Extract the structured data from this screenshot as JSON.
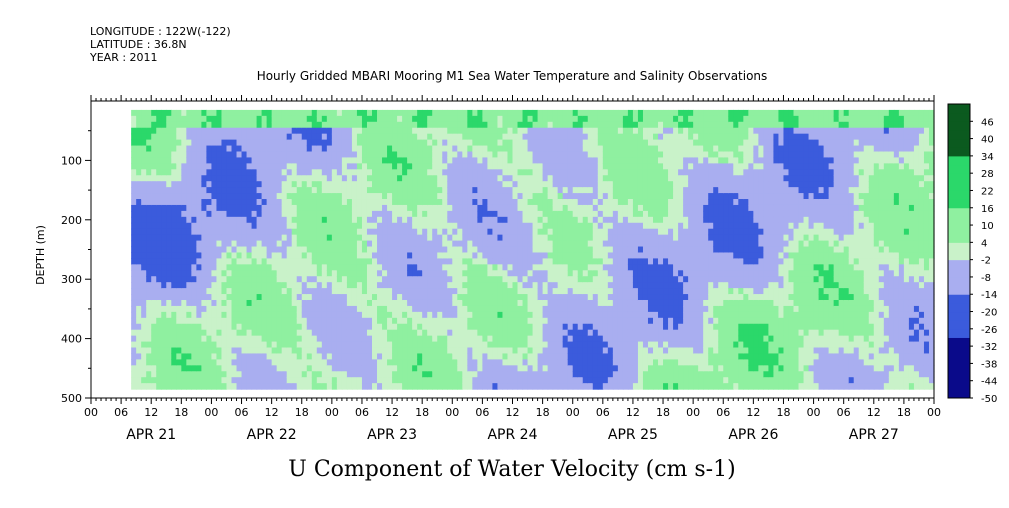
{
  "header": {
    "longitude": "LONGITUDE : 122W(-122)",
    "latitude": "LATITUDE : 36.8N",
    "year": "YEAR : 2011"
  },
  "title": "Hourly Gridded MBARI Mooring M1 Sea Water Temperature and Salinity Observations",
  "variable_title": "U Component of Water Velocity (cm s-1)",
  "colors": {
    "negative_strong": "#0a0a8a",
    "negative": "#3b5bdc",
    "negative_light": "#a9aef0",
    "zero": "#c9f2c9",
    "positive_light": "#8ff0a0",
    "positive": "#2bd86a",
    "positive_strong": "#0b5a1f"
  },
  "chart_data": {
    "type": "heatmap",
    "xlabel": "",
    "ylabel": "DEPTH (m)",
    "ylim": [
      500,
      0
    ],
    "y_ticks": [
      100,
      200,
      300,
      400,
      500
    ],
    "x_hour_ticks": [
      "00",
      "06",
      "12",
      "18",
      "00",
      "06",
      "12",
      "18",
      "00",
      "06",
      "12",
      "18",
      "00",
      "06",
      "12",
      "18",
      "00",
      "06",
      "12",
      "18",
      "00",
      "06",
      "12",
      "18",
      "00",
      "06",
      "12",
      "18",
      "00"
    ],
    "date_labels": [
      "APR 21",
      "APR 22",
      "APR 23",
      "APR 24",
      "APR 25",
      "APR 26",
      "APR 27"
    ],
    "colorbar_ticks": [
      "46",
      "40",
      "34",
      "28",
      "22",
      "16",
      "10",
      "4",
      "-2",
      "-8",
      "-14",
      "-20",
      "-26",
      "-32",
      "-38",
      "-44",
      "-50"
    ],
    "colorbar_range": [
      -50,
      52
    ],
    "legend_position": "right",
    "data_depth_range_m": [
      15,
      485
    ],
    "data_start": "APR 21 08:00",
    "summary": "U velocity mostly between -20 and +20 cm/s; positive (green) near surface, alternating negative (blue) and positive (green) bands at depth"
  }
}
